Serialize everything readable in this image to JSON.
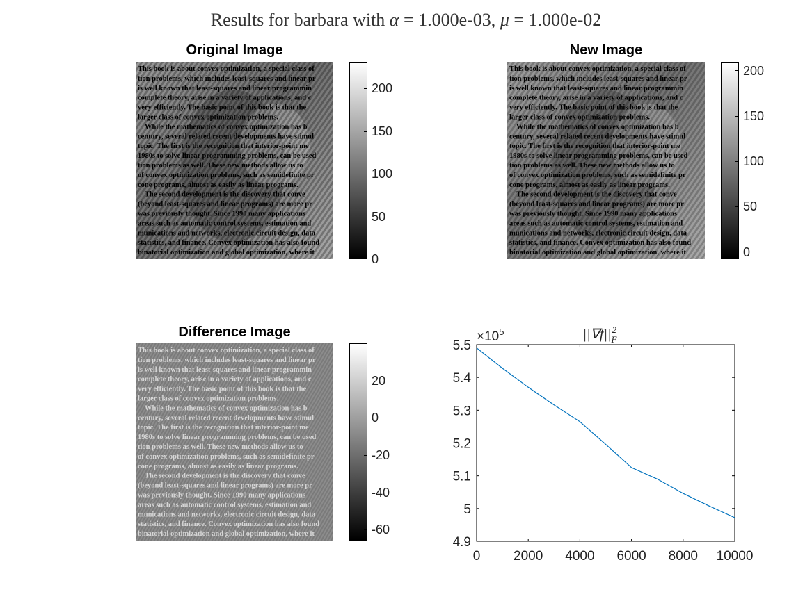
{
  "figure": {
    "suptitle_prefix": "Results for barbara with ",
    "alpha_symbol": "α",
    "alpha_text": " = 1.000e-03, ",
    "mu_symbol": "μ",
    "mu_text": " = 1.000e-02"
  },
  "panels": {
    "original": {
      "title": "Original Image",
      "colorbar_ticks": [
        "200",
        "150",
        "100",
        "50",
        "0"
      ]
    },
    "new": {
      "title": "New Image",
      "colorbar_ticks": [
        "200",
        "150",
        "100",
        "50",
        "0"
      ]
    },
    "difference": {
      "title": "Difference Image",
      "colorbar_ticks": [
        "20",
        "0",
        "-20",
        "-40",
        "-60"
      ]
    }
  },
  "book_text": [
    "This book is about convex optimization, a special class of",
    "tion problems, which includes least-squares and linear pr",
    "is well known that least-squares and linear programmin",
    "complete theory, arise in a variety of applications, and c",
    "very efficiently. The basic point of this book is that the",
    "larger class of convex optimization problems.",
    "While the mathematics of convex optimization has b",
    "century, several related recent developments have stimul",
    "topic. The first is the recognition that interior-point me",
    "1980s to solve linear programming problems, can be used",
    "tion problems as well. These new methods allow us to",
    "of convex optimization problems, such as semidefinite pr",
    "cone programs, almost as easily as linear programs.",
    "The second development is the discovery that conve",
    "(beyond least-squares and linear programs) are more pr",
    "was previously thought. Since 1990 many applications",
    "areas such as automatic control systems, estimation and",
    "munications and networks, electronic circuit design, data",
    "statistics, and finance. Convex optimization has also found",
    "binatorial optimization and global optimization, where it"
  ],
  "chart_data": [
    {
      "type": "image",
      "title": "Original Image",
      "colorbar": {
        "ticks": [
          0,
          50,
          100,
          150,
          200
        ],
        "range": [
          0,
          230
        ],
        "colormap": "gray"
      }
    },
    {
      "type": "image",
      "title": "New Image",
      "colorbar": {
        "ticks": [
          0,
          50,
          100,
          150,
          200
        ],
        "range": [
          -8,
          210
        ],
        "colormap": "gray"
      }
    },
    {
      "type": "image",
      "title": "Difference Image",
      "colorbar": {
        "ticks": [
          -60,
          -40,
          -20,
          0,
          20
        ],
        "range": [
          -68,
          38
        ],
        "colormap": "gray"
      }
    },
    {
      "type": "line",
      "title": "||∇f||F2",
      "title_main": "||∇f||",
      "title_sub": "F",
      "title_sup": "2",
      "y_multiplier": "×10",
      "y_multiplier_exp": "5",
      "xlim": [
        0,
        10000
      ],
      "ylim": [
        4.9,
        5.5
      ],
      "x_ticks": [
        "0",
        "2000",
        "4000",
        "6000",
        "8000",
        "10000"
      ],
      "y_ticks": [
        "4.9",
        "5",
        "5.1",
        "5.2",
        "5.3",
        "5.4",
        "5.5"
      ],
      "series": [
        {
          "x": [
            0,
            1000,
            2000,
            3000,
            4000,
            5000,
            6000,
            7000,
            8000,
            9000,
            10000
          ],
          "y": [
            5.49,
            5.428,
            5.37,
            5.316,
            5.265,
            5.196,
            5.125,
            5.09,
            5.046,
            5.008,
            4.972
          ],
          "color": "#0072BD"
        }
      ],
      "grid": false
    }
  ]
}
